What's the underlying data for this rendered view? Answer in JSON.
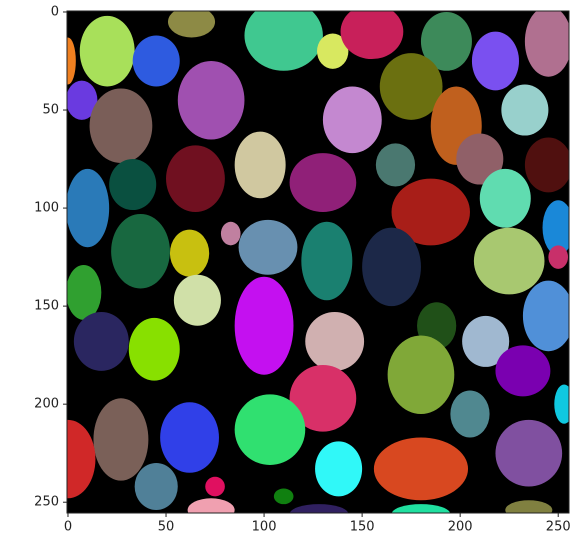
{
  "chart_data": {
    "type": "image",
    "xlim": [
      -0.5,
      255.5
    ],
    "ylim": [
      255.5,
      -0.5
    ],
    "xticks": [
      0,
      50,
      100,
      150,
      200,
      250
    ],
    "yticks": [
      0,
      50,
      100,
      150,
      200,
      250
    ]
  }
}
